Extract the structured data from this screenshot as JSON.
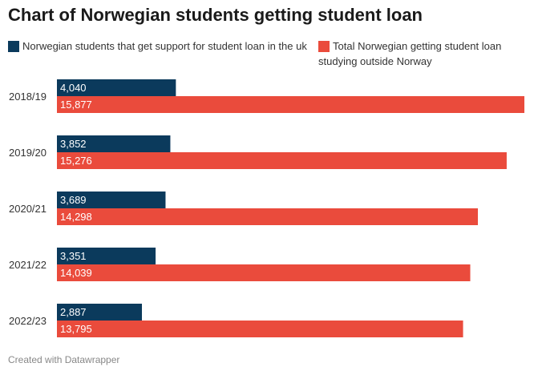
{
  "title": "Chart of Norwegian students getting student loan",
  "footer": "Created with Datawrapper",
  "colors": {
    "uk": "#0b3a5c",
    "total": "#ea4b3c"
  },
  "chart_data": {
    "type": "bar",
    "orientation": "horizontal",
    "title": "Chart of Norwegian students getting student loan",
    "categories": [
      "2018/19",
      "2019/20",
      "2020/21",
      "2021/22",
      "2022/23"
    ],
    "series": [
      {
        "name": "Norwegian students that get support for student loan in the uk",
        "values": [
          4040,
          3852,
          3689,
          3351,
          2887
        ],
        "labels": [
          "4,040",
          "3,852",
          "3,689",
          "3,351",
          "2,887"
        ]
      },
      {
        "name": "Total Norwegian getting student loan studying outside Norway",
        "values": [
          15877,
          15276,
          14298,
          14039,
          13795
        ],
        "labels": [
          "15,877",
          "15,276",
          "14,298",
          "14,039",
          "13,795"
        ]
      }
    ],
    "xlim": [
      0,
      15877
    ],
    "grid": false,
    "legend": "top"
  }
}
